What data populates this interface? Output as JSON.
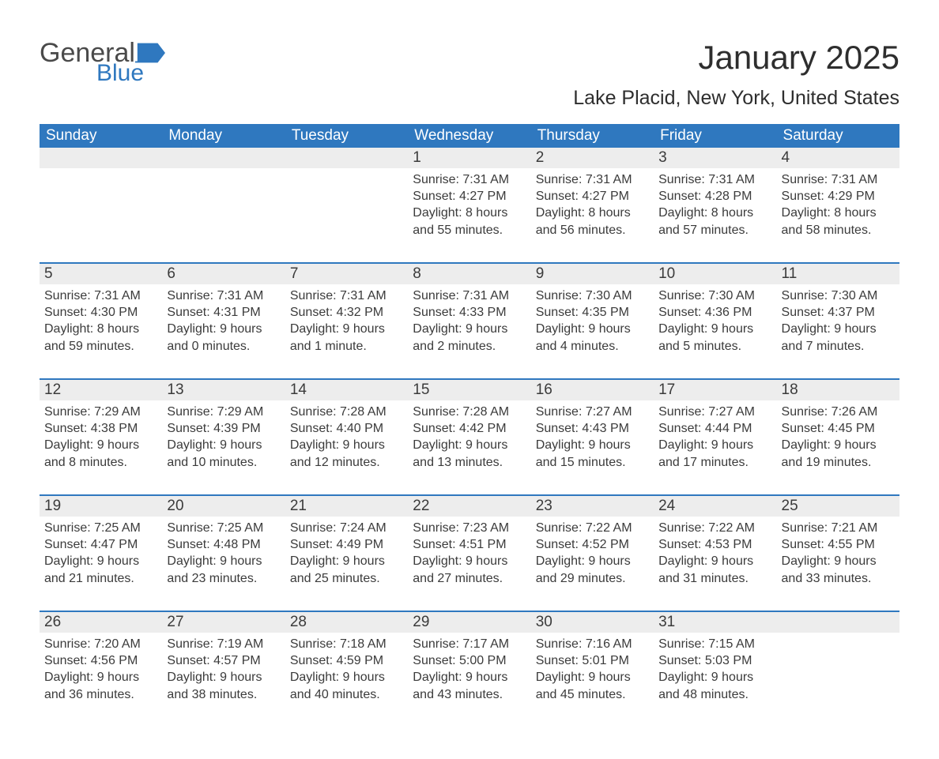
{
  "brand": {
    "word1": "General",
    "word2": "Blue"
  },
  "colors": {
    "brand_blue": "#2f78bf",
    "brand_gray": "#4a4a4a",
    "header_bg": "#2f78bf",
    "header_text": "#ffffff",
    "daynum_bg": "#ededed",
    "body_text": "#3b3b3b",
    "page_bg": "#ffffff"
  },
  "title": "January 2025",
  "location": "Lake Placid, New York, United States",
  "weekdays": [
    "Sunday",
    "Monday",
    "Tuesday",
    "Wednesday",
    "Thursday",
    "Friday",
    "Saturday"
  ],
  "weeks": [
    {
      "no_top_border": true,
      "days": [
        {
          "n": "",
          "sunrise": "",
          "sunset": "",
          "daylight": ""
        },
        {
          "n": "",
          "sunrise": "",
          "sunset": "",
          "daylight": ""
        },
        {
          "n": "",
          "sunrise": "",
          "sunset": "",
          "daylight": ""
        },
        {
          "n": "1",
          "sunrise": "Sunrise: 7:31 AM",
          "sunset": "Sunset: 4:27 PM",
          "daylight": "Daylight: 8 hours and 55 minutes."
        },
        {
          "n": "2",
          "sunrise": "Sunrise: 7:31 AM",
          "sunset": "Sunset: 4:27 PM",
          "daylight": "Daylight: 8 hours and 56 minutes."
        },
        {
          "n": "3",
          "sunrise": "Sunrise: 7:31 AM",
          "sunset": "Sunset: 4:28 PM",
          "daylight": "Daylight: 8 hours and 57 minutes."
        },
        {
          "n": "4",
          "sunrise": "Sunrise: 7:31 AM",
          "sunset": "Sunset: 4:29 PM",
          "daylight": "Daylight: 8 hours and 58 minutes."
        }
      ]
    },
    {
      "days": [
        {
          "n": "5",
          "sunrise": "Sunrise: 7:31 AM",
          "sunset": "Sunset: 4:30 PM",
          "daylight": "Daylight: 8 hours and 59 minutes."
        },
        {
          "n": "6",
          "sunrise": "Sunrise: 7:31 AM",
          "sunset": "Sunset: 4:31 PM",
          "daylight": "Daylight: 9 hours and 0 minutes."
        },
        {
          "n": "7",
          "sunrise": "Sunrise: 7:31 AM",
          "sunset": "Sunset: 4:32 PM",
          "daylight": "Daylight: 9 hours and 1 minute."
        },
        {
          "n": "8",
          "sunrise": "Sunrise: 7:31 AM",
          "sunset": "Sunset: 4:33 PM",
          "daylight": "Daylight: 9 hours and 2 minutes."
        },
        {
          "n": "9",
          "sunrise": "Sunrise: 7:30 AM",
          "sunset": "Sunset: 4:35 PM",
          "daylight": "Daylight: 9 hours and 4 minutes."
        },
        {
          "n": "10",
          "sunrise": "Sunrise: 7:30 AM",
          "sunset": "Sunset: 4:36 PM",
          "daylight": "Daylight: 9 hours and 5 minutes."
        },
        {
          "n": "11",
          "sunrise": "Sunrise: 7:30 AM",
          "sunset": "Sunset: 4:37 PM",
          "daylight": "Daylight: 9 hours and 7 minutes."
        }
      ]
    },
    {
      "days": [
        {
          "n": "12",
          "sunrise": "Sunrise: 7:29 AM",
          "sunset": "Sunset: 4:38 PM",
          "daylight": "Daylight: 9 hours and 8 minutes."
        },
        {
          "n": "13",
          "sunrise": "Sunrise: 7:29 AM",
          "sunset": "Sunset: 4:39 PM",
          "daylight": "Daylight: 9 hours and 10 minutes."
        },
        {
          "n": "14",
          "sunrise": "Sunrise: 7:28 AM",
          "sunset": "Sunset: 4:40 PM",
          "daylight": "Daylight: 9 hours and 12 minutes."
        },
        {
          "n": "15",
          "sunrise": "Sunrise: 7:28 AM",
          "sunset": "Sunset: 4:42 PM",
          "daylight": "Daylight: 9 hours and 13 minutes."
        },
        {
          "n": "16",
          "sunrise": "Sunrise: 7:27 AM",
          "sunset": "Sunset: 4:43 PM",
          "daylight": "Daylight: 9 hours and 15 minutes."
        },
        {
          "n": "17",
          "sunrise": "Sunrise: 7:27 AM",
          "sunset": "Sunset: 4:44 PM",
          "daylight": "Daylight: 9 hours and 17 minutes."
        },
        {
          "n": "18",
          "sunrise": "Sunrise: 7:26 AM",
          "sunset": "Sunset: 4:45 PM",
          "daylight": "Daylight: 9 hours and 19 minutes."
        }
      ]
    },
    {
      "days": [
        {
          "n": "19",
          "sunrise": "Sunrise: 7:25 AM",
          "sunset": "Sunset: 4:47 PM",
          "daylight": "Daylight: 9 hours and 21 minutes."
        },
        {
          "n": "20",
          "sunrise": "Sunrise: 7:25 AM",
          "sunset": "Sunset: 4:48 PM",
          "daylight": "Daylight: 9 hours and 23 minutes."
        },
        {
          "n": "21",
          "sunrise": "Sunrise: 7:24 AM",
          "sunset": "Sunset: 4:49 PM",
          "daylight": "Daylight: 9 hours and 25 minutes."
        },
        {
          "n": "22",
          "sunrise": "Sunrise: 7:23 AM",
          "sunset": "Sunset: 4:51 PM",
          "daylight": "Daylight: 9 hours and 27 minutes."
        },
        {
          "n": "23",
          "sunrise": "Sunrise: 7:22 AM",
          "sunset": "Sunset: 4:52 PM",
          "daylight": "Daylight: 9 hours and 29 minutes."
        },
        {
          "n": "24",
          "sunrise": "Sunrise: 7:22 AM",
          "sunset": "Sunset: 4:53 PM",
          "daylight": "Daylight: 9 hours and 31 minutes."
        },
        {
          "n": "25",
          "sunrise": "Sunrise: 7:21 AM",
          "sunset": "Sunset: 4:55 PM",
          "daylight": "Daylight: 9 hours and 33 minutes."
        }
      ]
    },
    {
      "days": [
        {
          "n": "26",
          "sunrise": "Sunrise: 7:20 AM",
          "sunset": "Sunset: 4:56 PM",
          "daylight": "Daylight: 9 hours and 36 minutes."
        },
        {
          "n": "27",
          "sunrise": "Sunrise: 7:19 AM",
          "sunset": "Sunset: 4:57 PM",
          "daylight": "Daylight: 9 hours and 38 minutes."
        },
        {
          "n": "28",
          "sunrise": "Sunrise: 7:18 AM",
          "sunset": "Sunset: 4:59 PM",
          "daylight": "Daylight: 9 hours and 40 minutes."
        },
        {
          "n": "29",
          "sunrise": "Sunrise: 7:17 AM",
          "sunset": "Sunset: 5:00 PM",
          "daylight": "Daylight: 9 hours and 43 minutes."
        },
        {
          "n": "30",
          "sunrise": "Sunrise: 7:16 AM",
          "sunset": "Sunset: 5:01 PM",
          "daylight": "Daylight: 9 hours and 45 minutes."
        },
        {
          "n": "31",
          "sunrise": "Sunrise: 7:15 AM",
          "sunset": "Sunset: 5:03 PM",
          "daylight": "Daylight: 9 hours and 48 minutes."
        },
        {
          "n": "",
          "sunrise": "",
          "sunset": "",
          "daylight": ""
        }
      ]
    }
  ]
}
